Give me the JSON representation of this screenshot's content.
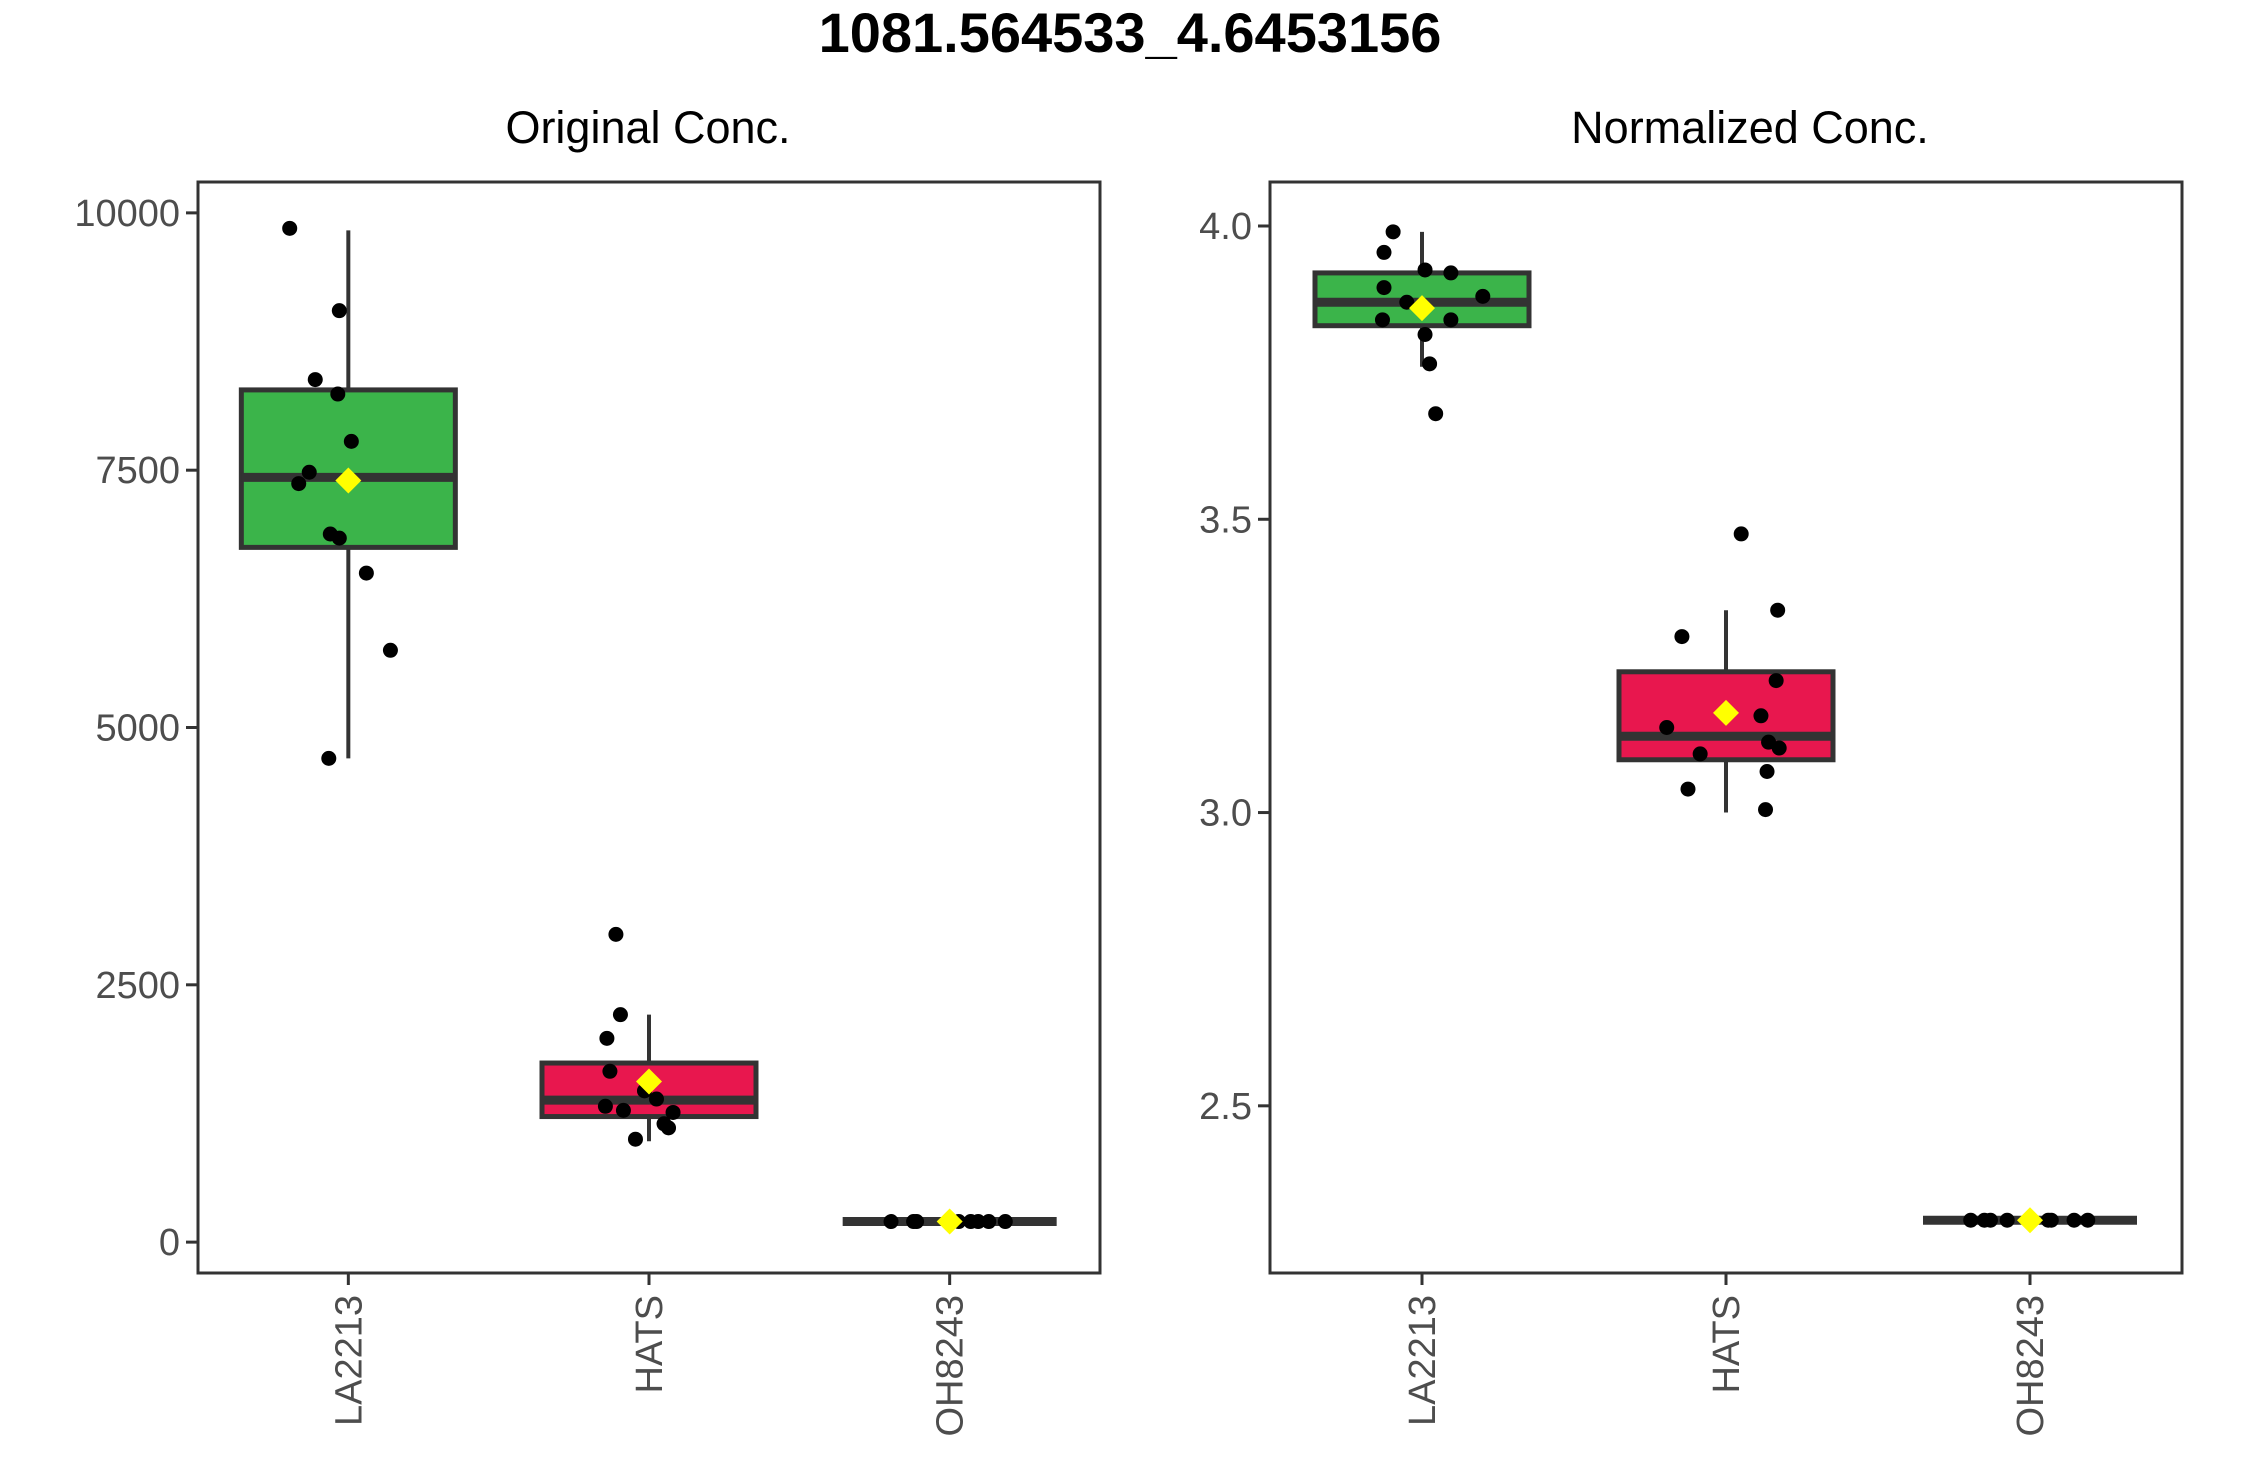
{
  "figure": {
    "title": "1081.564533_4.6453156"
  },
  "colors": {
    "LA2213": "#3bb44a",
    "HATS": "#e8174e",
    "OH8243": "#333333",
    "mean_marker": "#ffff00",
    "points": "#000000",
    "box_outline": "#333333"
  },
  "chart_data": [
    {
      "type": "box",
      "title": "Original Conc.",
      "xlabel": "",
      "ylabel": "",
      "ylim": [
        -300,
        10300
      ],
      "yticks": [
        0,
        2500,
        5000,
        7500,
        10000
      ],
      "ytick_labels": [
        "0",
        "2500",
        "5000",
        "7500",
        "10000"
      ],
      "categories": [
        "LA2213",
        "HATS",
        "OH8243"
      ],
      "grid": false,
      "boxes": [
        {
          "group": "LA2213",
          "whisker_low": 4700,
          "q1": 6750,
          "median": 7430,
          "q3": 8280,
          "whisker_high": 9830,
          "mean": 7400,
          "points": [
            {
              "x_jitter": -0.39,
              "y": 9850
            },
            {
              "x_jitter": -0.06,
              "y": 9050
            },
            {
              "x_jitter": -0.22,
              "y": 8380
            },
            {
              "x_jitter": -0.07,
              "y": 8240
            },
            {
              "x_jitter": 0.02,
              "y": 7780
            },
            {
              "x_jitter": -0.26,
              "y": 7480
            },
            {
              "x_jitter": -0.33,
              "y": 7370
            },
            {
              "x_jitter": -0.12,
              "y": 6880
            },
            {
              "x_jitter": -0.06,
              "y": 6840
            },
            {
              "x_jitter": 0.12,
              "y": 6500
            },
            {
              "x_jitter": 0.28,
              "y": 5750
            },
            {
              "x_jitter": -0.13,
              "y": 4700
            }
          ]
        },
        {
          "group": "HATS",
          "whisker_low": 980,
          "q1": 1220,
          "median": 1380,
          "q3": 1740,
          "whisker_high": 2210,
          "mean": 1560,
          "points": [
            {
              "x_jitter": -0.22,
              "y": 2990
            },
            {
              "x_jitter": -0.19,
              "y": 2210
            },
            {
              "x_jitter": -0.28,
              "y": 1980
            },
            {
              "x_jitter": -0.26,
              "y": 1660
            },
            {
              "x_jitter": -0.03,
              "y": 1470
            },
            {
              "x_jitter": 0.05,
              "y": 1390
            },
            {
              "x_jitter": -0.29,
              "y": 1320
            },
            {
              "x_jitter": -0.17,
              "y": 1280
            },
            {
              "x_jitter": 0.16,
              "y": 1260
            },
            {
              "x_jitter": 0.1,
              "y": 1150
            },
            {
              "x_jitter": 0.13,
              "y": 1110
            },
            {
              "x_jitter": -0.09,
              "y": 1000
            }
          ]
        },
        {
          "group": "OH8243",
          "whisker_low": 200,
          "q1": 200,
          "median": 200,
          "q3": 200,
          "whisker_high": 200,
          "mean": 200,
          "points": [
            {
              "x_jitter": -0.39,
              "y": 200
            },
            {
              "x_jitter": -0.24,
              "y": 200
            },
            {
              "x_jitter": -0.22,
              "y": 200
            },
            {
              "x_jitter": 0.06,
              "y": 200
            },
            {
              "x_jitter": 0.14,
              "y": 200
            },
            {
              "x_jitter": 0.19,
              "y": 200
            },
            {
              "x_jitter": 0.37,
              "y": 200
            },
            {
              "x_jitter": 0.26,
              "y": 200
            }
          ]
        }
      ]
    },
    {
      "type": "box",
      "title": "Normalized Conc.",
      "xlabel": "",
      "ylabel": "",
      "ylim": [
        2.215,
        4.075
      ],
      "yticks": [
        2.5,
        3.0,
        3.5,
        4.0
      ],
      "ytick_labels": [
        "2.5",
        "3.0",
        "3.5",
        "4.0"
      ],
      "categories": [
        "LA2213",
        "HATS",
        "OH8243"
      ],
      "grid": false,
      "boxes": [
        {
          "group": "LA2213",
          "whisker_low": 3.76,
          "q1": 3.83,
          "median": 3.87,
          "q3": 3.92,
          "whisker_high": 3.99,
          "mean": 3.86,
          "points": [
            {
              "x_jitter": -0.19,
              "y": 3.99
            },
            {
              "x_jitter": -0.25,
              "y": 3.955
            },
            {
              "x_jitter": 0.02,
              "y": 3.925
            },
            {
              "x_jitter": 0.19,
              "y": 3.92
            },
            {
              "x_jitter": -0.25,
              "y": 3.895
            },
            {
              "x_jitter": 0.4,
              "y": 3.88
            },
            {
              "x_jitter": -0.1,
              "y": 3.87
            },
            {
              "x_jitter": -0.26,
              "y": 3.84
            },
            {
              "x_jitter": 0.19,
              "y": 3.84
            },
            {
              "x_jitter": 0.02,
              "y": 3.815
            },
            {
              "x_jitter": 0.05,
              "y": 3.765
            },
            {
              "x_jitter": 0.09,
              "y": 3.68
            }
          ]
        },
        {
          "group": "HATS",
          "whisker_low": 3.0,
          "q1": 3.09,
          "median": 3.13,
          "q3": 3.24,
          "whisker_high": 3.345,
          "mean": 3.17,
          "points": [
            {
              "x_jitter": 0.1,
              "y": 3.475
            },
            {
              "x_jitter": 0.34,
              "y": 3.345
            },
            {
              "x_jitter": -0.29,
              "y": 3.3
            },
            {
              "x_jitter": 0.33,
              "y": 3.225
            },
            {
              "x_jitter": 0.23,
              "y": 3.165
            },
            {
              "x_jitter": -0.39,
              "y": 3.145
            },
            {
              "x_jitter": 0.28,
              "y": 3.12
            },
            {
              "x_jitter": 0.35,
              "y": 3.11
            },
            {
              "x_jitter": -0.17,
              "y": 3.1
            },
            {
              "x_jitter": 0.27,
              "y": 3.07
            },
            {
              "x_jitter": -0.25,
              "y": 3.04
            },
            {
              "x_jitter": 0.26,
              "y": 3.005
            }
          ]
        },
        {
          "group": "OH8243",
          "whisker_low": 2.305,
          "q1": 2.305,
          "median": 2.305,
          "q3": 2.305,
          "whisker_high": 2.305,
          "mean": 2.305,
          "points": [
            {
              "x_jitter": -0.39,
              "y": 2.305
            },
            {
              "x_jitter": -0.3,
              "y": 2.305
            },
            {
              "x_jitter": -0.26,
              "y": 2.305
            },
            {
              "x_jitter": -0.15,
              "y": 2.305
            },
            {
              "x_jitter": 0.12,
              "y": 2.305
            },
            {
              "x_jitter": 0.29,
              "y": 2.305
            },
            {
              "x_jitter": 0.38,
              "y": 2.305
            },
            {
              "x_jitter": 0.14,
              "y": 2.305
            }
          ]
        }
      ]
    }
  ]
}
